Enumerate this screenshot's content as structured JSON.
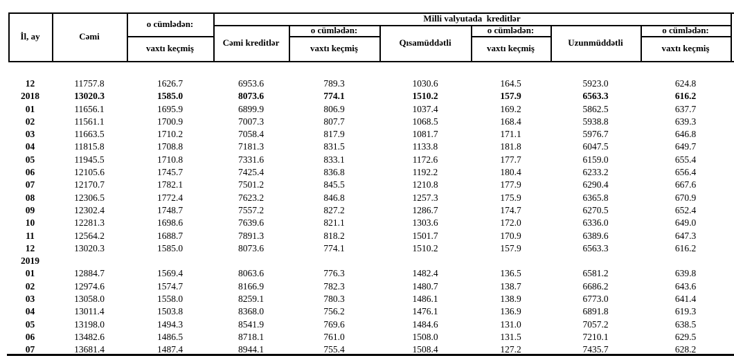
{
  "colors": {
    "border": "#000000",
    "text": "#000000",
    "background": "#ffffff"
  },
  "table": {
    "header": {
      "il_ay": "İl, ay",
      "cemi": "Cəmi",
      "o_cumleden": "o cümlədən:",
      "vaxti_kecmis": "vaxtı keçmiş",
      "banner_milli_valyutada": "Milli valyutada  kreditlər",
      "cemi_kreditler": "Cəmi kreditlər",
      "qisamuddetli": "Qısamüddətli",
      "uzunmuddetli": "Uzunmüddətli"
    },
    "rows": [
      {
        "label": "12",
        "bold": false,
        "values": [
          "11757.8",
          "1626.7",
          "6953.6",
          "789.3",
          "1030.6",
          "164.5",
          "5923.0",
          "624.8"
        ]
      },
      {
        "label": "2018",
        "bold": true,
        "values": [
          "13020.3",
          "1585.0",
          "8073.6",
          "774.1",
          "1510.2",
          "157.9",
          "6563.3",
          "616.2"
        ]
      },
      {
        "label": "01",
        "bold": false,
        "values": [
          "11656.1",
          "1695.9",
          "6899.9",
          "806.9",
          "1037.4",
          "169.2",
          "5862.5",
          "637.7"
        ]
      },
      {
        "label": "02",
        "bold": false,
        "values": [
          "11561.1",
          "1700.9",
          "7007.3",
          "807.7",
          "1068.5",
          "168.4",
          "5938.8",
          "639.3"
        ]
      },
      {
        "label": "03",
        "bold": false,
        "values": [
          "11663.5",
          "1710.2",
          "7058.4",
          "817.9",
          "1081.7",
          "171.1",
          "5976.7",
          "646.8"
        ]
      },
      {
        "label": "04",
        "bold": false,
        "values": [
          "11815.8",
          "1708.8",
          "7181.3",
          "831.5",
          "1133.8",
          "181.8",
          "6047.5",
          "649.7"
        ]
      },
      {
        "label": "05",
        "bold": false,
        "values": [
          "11945.5",
          "1710.8",
          "7331.6",
          "833.1",
          "1172.6",
          "177.7",
          "6159.0",
          "655.4"
        ]
      },
      {
        "label": "06",
        "bold": false,
        "values": [
          "12105.6",
          "1745.7",
          "7425.4",
          "836.8",
          "1192.2",
          "180.4",
          "6233.2",
          "656.4"
        ]
      },
      {
        "label": "07",
        "bold": false,
        "values": [
          "12170.7",
          "1782.1",
          "7501.2",
          "845.5",
          "1210.8",
          "177.9",
          "6290.4",
          "667.6"
        ]
      },
      {
        "label": "08",
        "bold": false,
        "values": [
          "12306.5",
          "1772.4",
          "7623.2",
          "846.8",
          "1257.3",
          "175.9",
          "6365.8",
          "670.9"
        ]
      },
      {
        "label": "09",
        "bold": false,
        "values": [
          "12302.4",
          "1748.7",
          "7557.2",
          "827.2",
          "1286.7",
          "174.7",
          "6270.5",
          "652.4"
        ]
      },
      {
        "label": "10",
        "bold": false,
        "values": [
          "12281.3",
          "1698.6",
          "7639.6",
          "821.1",
          "1303.6",
          "172.0",
          "6336.0",
          "649.0"
        ]
      },
      {
        "label": "11",
        "bold": false,
        "values": [
          "12564.2",
          "1688.7",
          "7891.3",
          "818.2",
          "1501.7",
          "170.9",
          "6389.6",
          "647.3"
        ]
      },
      {
        "label": "12",
        "bold": false,
        "values": [
          "13020.3",
          "1585.0",
          "8073.6",
          "774.1",
          "1510.2",
          "157.9",
          "6563.3",
          "616.2"
        ]
      },
      {
        "label": "2019",
        "bold": false,
        "values": [
          "",
          "",
          "",
          "",
          "",
          "",
          "",
          ""
        ]
      },
      {
        "label": "01",
        "bold": false,
        "values": [
          "12884.7",
          "1569.4",
          "8063.6",
          "776.3",
          "1482.4",
          "136.5",
          "6581.2",
          "639.8"
        ]
      },
      {
        "label": "02",
        "bold": false,
        "values": [
          "12974.6",
          "1574.7",
          "8166.9",
          "782.3",
          "1480.7",
          "138.7",
          "6686.2",
          "643.6"
        ]
      },
      {
        "label": "03",
        "bold": false,
        "values": [
          "13058.0",
          "1558.0",
          "8259.1",
          "780.3",
          "1486.1",
          "138.9",
          "6773.0",
          "641.4"
        ]
      },
      {
        "label": "04",
        "bold": false,
        "values": [
          "13011.4",
          "1503.8",
          "8368.0",
          "756.2",
          "1476.1",
          "136.9",
          "6891.8",
          "619.3"
        ]
      },
      {
        "label": "05",
        "bold": false,
        "values": [
          "13198.0",
          "1494.3",
          "8541.9",
          "769.6",
          "1484.6",
          "131.0",
          "7057.2",
          "638.5"
        ]
      },
      {
        "label": "06",
        "bold": false,
        "values": [
          "13482.6",
          "1486.5",
          "8718.1",
          "761.0",
          "1508.0",
          "131.5",
          "7210.1",
          "629.5"
        ]
      },
      {
        "label": "07",
        "bold": false,
        "values": [
          "13681.4",
          "1487.4",
          "8944.1",
          "755.4",
          "1508.4",
          "127.2",
          "7435.7",
          "628.2"
        ]
      }
    ]
  }
}
